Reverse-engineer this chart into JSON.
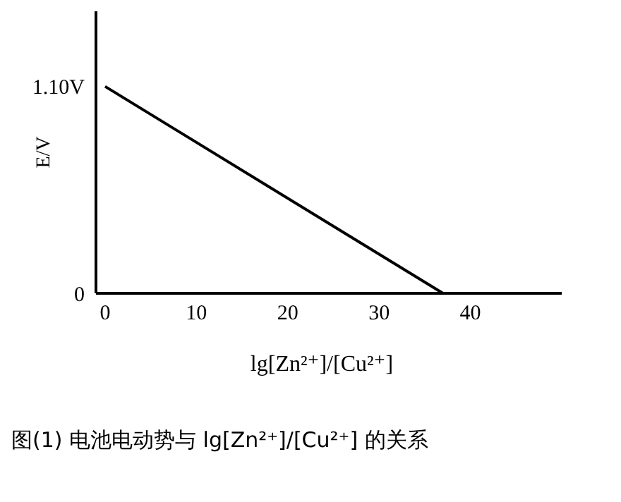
{
  "chart_data": {
    "type": "line",
    "xlabel": "lg[Zn²⁺]/[Cu²⁺]",
    "ylabel": "E/V",
    "x": [
      0,
      37
    ],
    "series": [
      {
        "color": "#000000",
        "values": [
          1.1,
          0
        ]
      }
    ],
    "xlim": [
      -1,
      50
    ],
    "xticks": [
      0,
      10,
      20,
      30,
      40
    ],
    "ylim": [
      0,
      1.5
    ],
    "yticks": [
      0,
      {
        "value": 1.1,
        "label": "1.10V"
      }
    ],
    "grid": false,
    "legend": false,
    "marker": "none",
    "line_style": "solid",
    "annotations": [
      "图(1) 电池电动势与 lg[Zn²⁺]/[Cu²⁺] 的关系"
    ]
  }
}
